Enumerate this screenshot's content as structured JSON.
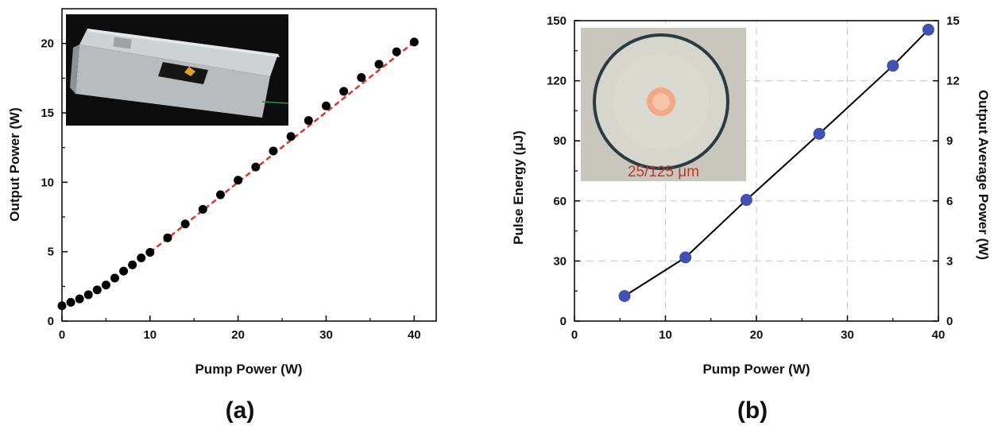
{
  "chart_data": [
    {
      "panel_label": "(a)",
      "type": "scatter",
      "xlabel": "Pump Power (W)",
      "ylabel": "Output Power (W)",
      "xlim": [
        0,
        42.5
      ],
      "ylim": [
        0,
        22.5
      ],
      "xticks": [
        0,
        10,
        20,
        30,
        40
      ],
      "yticks": [
        0,
        5,
        10,
        15,
        20
      ],
      "inset": "photo of packaged laser module (metal housing with fiber output)",
      "series": [
        {
          "marker": "black-circle",
          "x": [
            0,
            1,
            2,
            3,
            4,
            5,
            6,
            7,
            8,
            9,
            10,
            12,
            14,
            16,
            18,
            20,
            22,
            24,
            26,
            28,
            30,
            32,
            34,
            36,
            38,
            40
          ],
          "y": [
            1.1,
            1.35,
            1.6,
            1.9,
            2.25,
            2.6,
            3.1,
            3.6,
            4.05,
            4.55,
            4.95,
            6.0,
            7.0,
            8.05,
            9.1,
            10.15,
            11.1,
            12.25,
            13.3,
            14.45,
            15.5,
            16.55,
            17.55,
            18.5,
            19.4,
            20.1
          ]
        },
        {
          "style": "red-dashed-fit",
          "x": [
            10,
            40
          ],
          "y": [
            4.95,
            20.1
          ]
        }
      ]
    },
    {
      "panel_label": "(b)",
      "type": "line",
      "xlabel": "Pump Power (W)",
      "ylabel": "Pulse Energy (μJ)",
      "y2label": "Output Average Power (W)",
      "xlim": [
        0,
        40
      ],
      "ylim": [
        0,
        150
      ],
      "y2lim": [
        0,
        15
      ],
      "xticks": [
        0,
        10,
        20,
        30,
        40
      ],
      "yticks": [
        0,
        30,
        60,
        90,
        120,
        150
      ],
      "y2ticks": [
        0,
        3,
        6,
        9,
        12,
        15
      ],
      "grid": true,
      "inset_caption": "25/125 μm",
      "series": [
        {
          "marker": "blue-circle",
          "x": [
            5.5,
            12.2,
            18.9,
            26.9,
            35.0,
            38.9
          ],
          "y": [
            12.5,
            31.8,
            60.5,
            93.5,
            127.5,
            145.5
          ]
        }
      ]
    }
  ],
  "colors": {
    "marker_a": "#000000",
    "fit_line_a": "#e0342b",
    "marker_b": "#3f51b5",
    "line_b": "#000000",
    "inset_caption": "#c0392b"
  }
}
